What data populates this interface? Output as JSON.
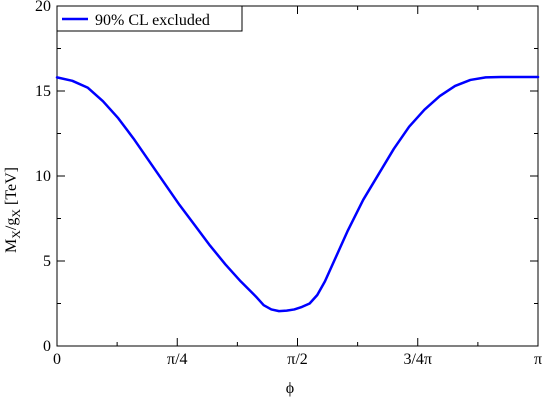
{
  "chart_data": {
    "type": "line",
    "title": "",
    "xlabel": "ϕ",
    "ylabel": {
      "main": "M",
      "sub1": "X",
      "slash": "/g",
      "sub2": "X",
      "unit": " [TeV]"
    },
    "xlim": [
      0,
      3.14159265
    ],
    "ylim": [
      0,
      20
    ],
    "x_ticks": [
      {
        "value": 0,
        "label": "0"
      },
      {
        "value": 0.78539816,
        "label": "π/4"
      },
      {
        "value": 1.57079633,
        "label": "π/2"
      },
      {
        "value": 2.35619449,
        "label": "3/4π"
      },
      {
        "value": 3.14159265,
        "label": "π"
      }
    ],
    "y_ticks": [
      {
        "value": 0,
        "label": "0"
      },
      {
        "value": 5,
        "label": "5"
      },
      {
        "value": 10,
        "label": "10"
      },
      {
        "value": 15,
        "label": "15"
      },
      {
        "value": 20,
        "label": "20"
      }
    ],
    "legend_position": "top-left",
    "grid": false,
    "series": [
      {
        "name": "90% CL excluded",
        "color": "#0000ff",
        "x": [
          0.0,
          0.1,
          0.2,
          0.3,
          0.4,
          0.5,
          0.6,
          0.7,
          0.8,
          0.9,
          1.0,
          1.1,
          1.2,
          1.3,
          1.35,
          1.4,
          1.45,
          1.5,
          1.55,
          1.6,
          1.65,
          1.7,
          1.75,
          1.8,
          1.85,
          1.9,
          2.0,
          2.1,
          2.2,
          2.3,
          2.4,
          2.5,
          2.6,
          2.7,
          2.8,
          2.9,
          3.0,
          3.05,
          3.1,
          3.14159265
        ],
        "y": [
          15.8,
          15.6,
          15.2,
          14.4,
          13.4,
          12.2,
          10.9,
          9.6,
          8.3,
          7.1,
          5.9,
          4.8,
          3.8,
          2.9,
          2.4,
          2.15,
          2.05,
          2.08,
          2.15,
          2.3,
          2.5,
          3.0,
          3.8,
          4.8,
          5.8,
          6.8,
          8.6,
          10.1,
          11.6,
          12.9,
          13.9,
          14.7,
          15.3,
          15.65,
          15.8,
          15.82,
          15.82,
          15.82,
          15.82,
          15.82
        ]
      }
    ]
  }
}
